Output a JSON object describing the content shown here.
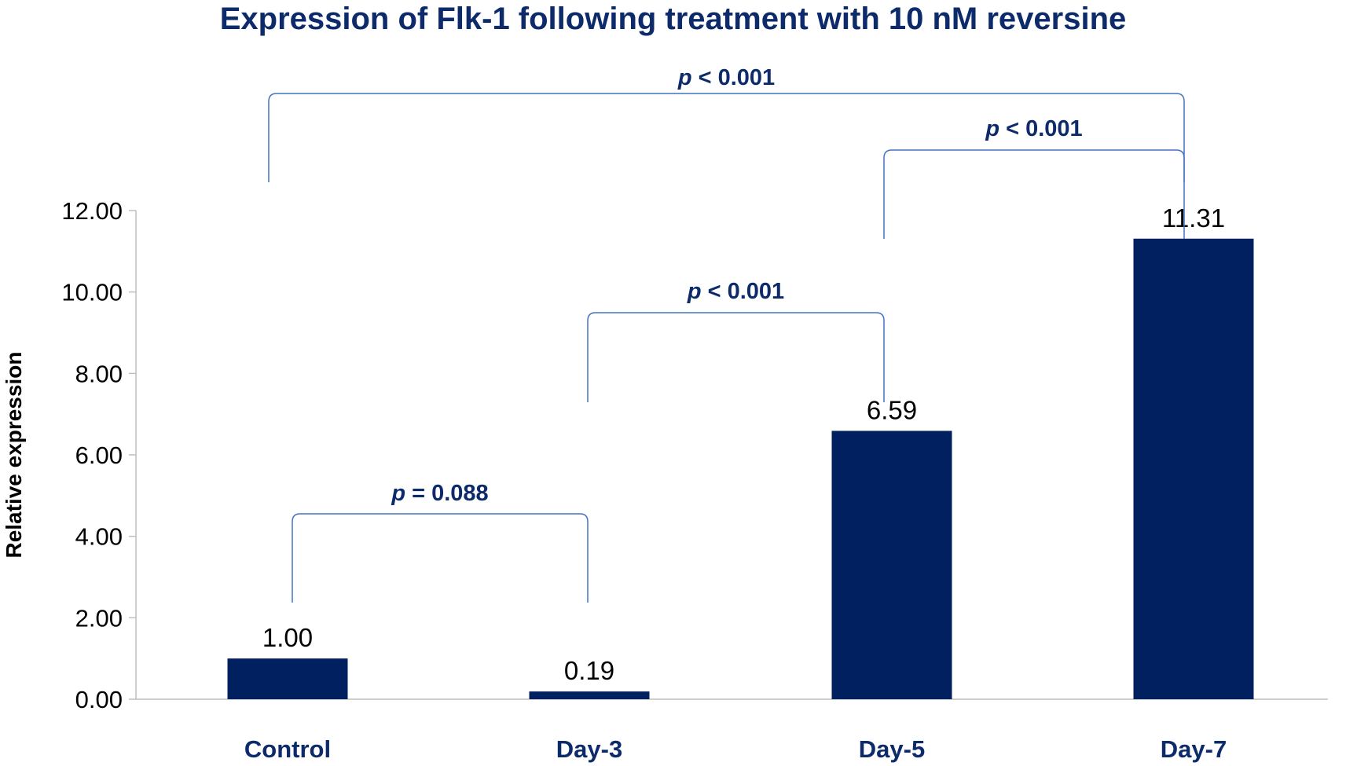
{
  "chart_data": {
    "type": "bar",
    "title": "Expression of Flk-1 following treatment with 10 nM reversine",
    "xlabel": "",
    "ylabel": "Relative expression",
    "categories": [
      "Control",
      "Day-3",
      "Day-5",
      "Day-7"
    ],
    "values": [
      1.0,
      0.19,
      6.59,
      11.31
    ],
    "value_labels": [
      "1.00",
      "0.19",
      "6.59",
      "11.31"
    ],
    "ylim": [
      0,
      12
    ],
    "yticks": [
      0,
      2,
      4,
      6,
      8,
      10,
      12
    ],
    "ytick_labels": [
      "0.00",
      "2.00",
      "4.00",
      "6.00",
      "8.00",
      "10.00",
      "12.00"
    ],
    "grid": false,
    "legend": "none",
    "bar_color": "#002060",
    "bracket_color": "#4472c4",
    "text_color": "#0d2b6b",
    "annotations": [
      {
        "from": "Control",
        "to": "Day-3",
        "prefix": "p",
        "rest": " = 0.088"
      },
      {
        "from": "Day-3",
        "to": "Day-5",
        "prefix": "p",
        "rest": " < 0.001"
      },
      {
        "from": "Day-5",
        "to": "Day-7",
        "prefix": "p",
        "rest": " < 0.001"
      },
      {
        "from": "Control",
        "to": "Day-7",
        "prefix": "p",
        "rest": " < 0.001"
      }
    ]
  }
}
